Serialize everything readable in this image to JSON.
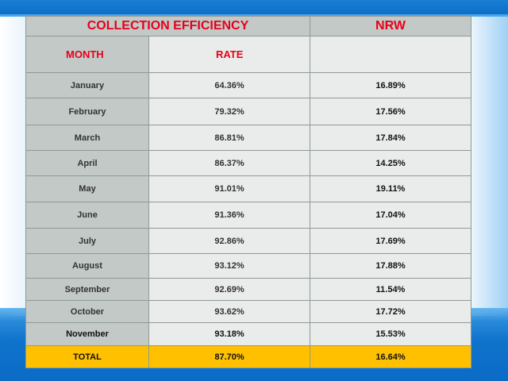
{
  "table": {
    "header": {
      "left": "COLLECTION EFFICIENCY",
      "right": "NRW"
    },
    "subheader": {
      "month": "MONTH",
      "rate": "RATE",
      "nrw": ""
    },
    "rows": [
      {
        "month": "January",
        "rate": "64.36%",
        "nrw": "16.89%"
      },
      {
        "month": "February",
        "rate": "79.32%",
        "nrw": "17.56%"
      },
      {
        "month": "March",
        "rate": "86.81%",
        "nrw": "17.84%"
      },
      {
        "month": "April",
        "rate": "86.37%",
        "nrw": "14.25%"
      },
      {
        "month": "May",
        "rate": "91.01%",
        "nrw": "19.11%"
      },
      {
        "month": "June",
        "rate": "91.36%",
        "nrw": "17.04%"
      },
      {
        "month": "July",
        "rate": "92.86%",
        "nrw": "17.69%"
      },
      {
        "month": "August",
        "rate": "93.12%",
        "nrw": "17.88%"
      },
      {
        "month": "September",
        "rate": "92.69%",
        "nrw": "11.54%"
      },
      {
        "month": "October",
        "rate": "93.62%",
        "nrw": "17.72%"
      },
      {
        "month": "November",
        "rate": "93.18%",
        "nrw": "15.53%"
      }
    ],
    "total": {
      "month": "TOTAL",
      "rate": "87.70%",
      "nrw": "16.64%"
    }
  },
  "colors": {
    "header_text": "#e8001a",
    "month_column_bg": "#c2c9c7",
    "cell_bg": "#e9eceb",
    "total_row_bg": "#ffc000",
    "slide_blue": "#0d6fc7"
  }
}
